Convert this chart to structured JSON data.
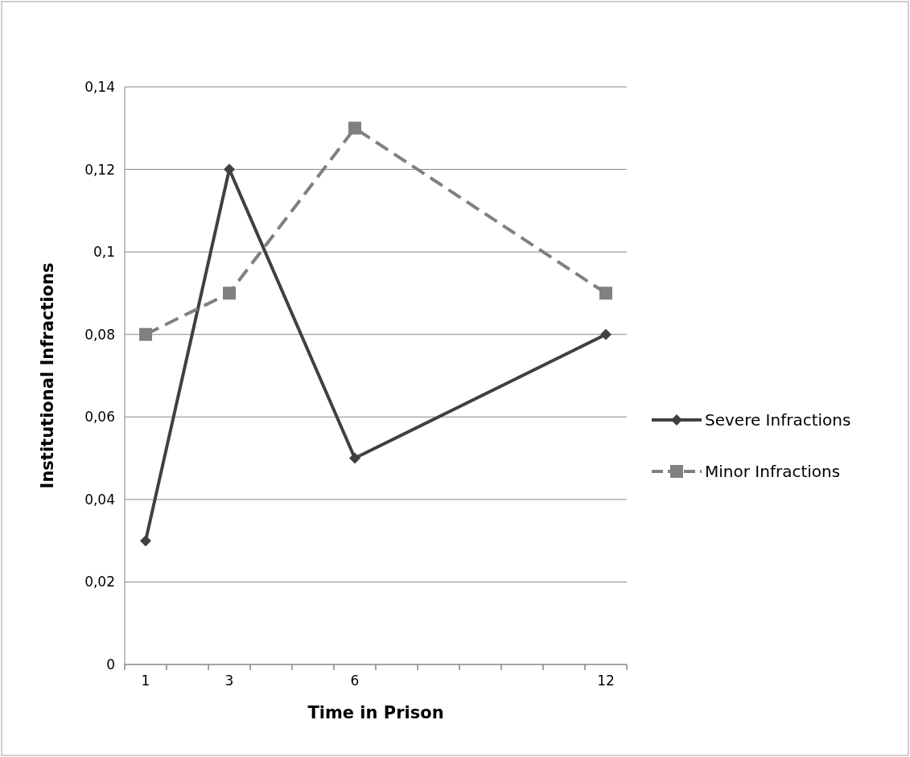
{
  "chart_data": {
    "type": "line",
    "xlabel": "Time in Prison",
    "ylabel": "Institutional Infractions",
    "x": [
      1,
      3,
      6,
      12
    ],
    "xlim": [
      0.5,
      12.5
    ],
    "xticks": [
      1,
      3,
      6,
      12
    ],
    "ylim": [
      0,
      0.14
    ],
    "yticks": [
      0,
      {
        "value": 0.02,
        "label": "0,02"
      },
      {
        "value": 0.04,
        "label": "0,04"
      },
      {
        "value": 0.06,
        "label": "0,06"
      },
      {
        "value": 0.08,
        "label": "0,08"
      },
      {
        "value": 0.1,
        "label": "0,1"
      },
      {
        "value": 0.12,
        "label": "0,12"
      },
      {
        "value": 0.14,
        "label": "0,14"
      }
    ],
    "grid": "y",
    "legend": "right",
    "series": [
      {
        "name": "Severe Infractions",
        "color": "#404040",
        "values": [
          0.03,
          0.12,
          0.05,
          0.08
        ],
        "marker": "diamond",
        "line_style": "solid"
      },
      {
        "name": "Minor Infractions",
        "color": "#808080",
        "values": [
          0.08,
          0.09,
          0.13,
          0.09
        ],
        "marker": "square",
        "line_style": "dashed"
      }
    ]
  }
}
